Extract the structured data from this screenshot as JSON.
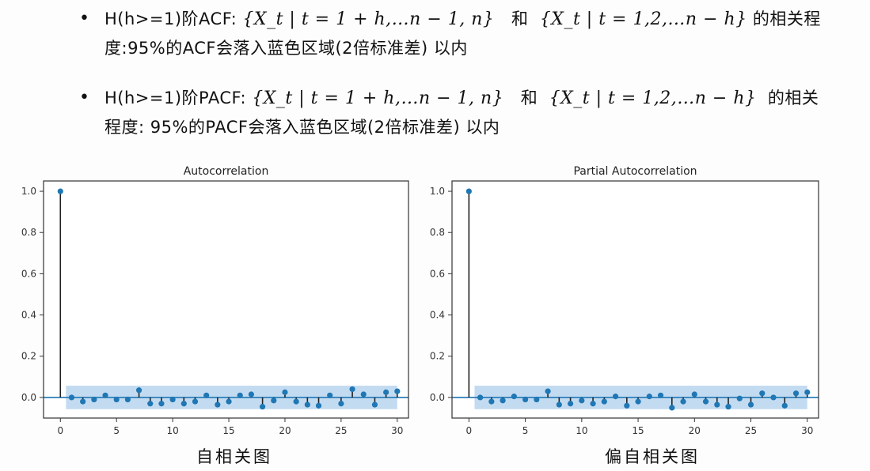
{
  "bullets": [
    {
      "prefix": "H(h>=1)阶ACF:",
      "set_a": "{X_t | t = 1 + h,…n − 1, n}",
      "conj": "和",
      "set_b": "{X_t | t = 1,2,…n − h}",
      "suffix": "的相关程",
      "line2": "度:95%的ACF会落入蓝色区域(2倍标准差) 以内"
    },
    {
      "prefix": "H(h>=1)阶PACF:",
      "set_a": "{X_t | t = 1 + h,…n − 1, n}",
      "conj": "和",
      "set_b": "{X_t | t = 1,2,…n − h}",
      "suffix": "的相关",
      "line2": "程度: 95%的PACF会落入蓝色区域(2倍标准差) 以内"
    }
  ],
  "captions": {
    "acf": "自相关图",
    "pacf": "偏自相关图"
  },
  "colors": {
    "stem": "#1f77b4",
    "band": "#b8d5ee",
    "frame": "#333333"
  },
  "chart_data": [
    {
      "type": "stem",
      "title": "Autocorrelation",
      "xlabel": "",
      "ylabel": "",
      "xlim": [
        -1.5,
        31
      ],
      "ylim": [
        -0.1,
        1.05
      ],
      "xticks": [
        0,
        5,
        10,
        15,
        20,
        25,
        30
      ],
      "yticks": [
        0.0,
        0.2,
        0.4,
        0.6,
        0.8,
        1.0
      ],
      "confidence_band": {
        "from_lag": 1,
        "to_lag": 30,
        "lower": -0.057,
        "upper": 0.057
      },
      "lags": [
        0,
        1,
        2,
        3,
        4,
        5,
        6,
        7,
        8,
        9,
        10,
        11,
        12,
        13,
        14,
        15,
        16,
        17,
        18,
        19,
        20,
        21,
        22,
        23,
        24,
        25,
        26,
        27,
        28,
        29,
        30
      ],
      "values": [
        1.0,
        0.0,
        -0.02,
        -0.01,
        0.01,
        -0.01,
        -0.01,
        0.035,
        -0.03,
        -0.03,
        -0.01,
        -0.03,
        -0.02,
        0.01,
        -0.035,
        -0.02,
        0.01,
        0.015,
        -0.045,
        -0.015,
        0.025,
        -0.02,
        -0.035,
        -0.04,
        0.01,
        -0.03,
        0.04,
        0.015,
        -0.035,
        0.025,
        0.03
      ]
    },
    {
      "type": "stem",
      "title": "Partial Autocorrelation",
      "xlabel": "",
      "ylabel": "",
      "xlim": [
        -1.5,
        31
      ],
      "ylim": [
        -0.1,
        1.05
      ],
      "xticks": [
        0,
        5,
        10,
        15,
        20,
        25,
        30
      ],
      "yticks": [
        0.0,
        0.2,
        0.4,
        0.6,
        0.8,
        1.0
      ],
      "confidence_band": {
        "from_lag": 1,
        "to_lag": 30,
        "lower": -0.057,
        "upper": 0.057
      },
      "lags": [
        0,
        1,
        2,
        3,
        4,
        5,
        6,
        7,
        8,
        9,
        10,
        11,
        12,
        13,
        14,
        15,
        16,
        17,
        18,
        19,
        20,
        21,
        22,
        23,
        24,
        25,
        26,
        27,
        28,
        29,
        30
      ],
      "values": [
        1.0,
        0.0,
        -0.02,
        -0.015,
        0.005,
        -0.01,
        -0.01,
        0.03,
        -0.035,
        -0.03,
        -0.015,
        -0.03,
        -0.02,
        0.005,
        -0.04,
        -0.02,
        0.005,
        0.01,
        -0.05,
        -0.02,
        0.015,
        -0.02,
        -0.035,
        -0.045,
        -0.005,
        -0.035,
        0.02,
        0.0,
        -0.04,
        0.02,
        0.025
      ]
    }
  ]
}
